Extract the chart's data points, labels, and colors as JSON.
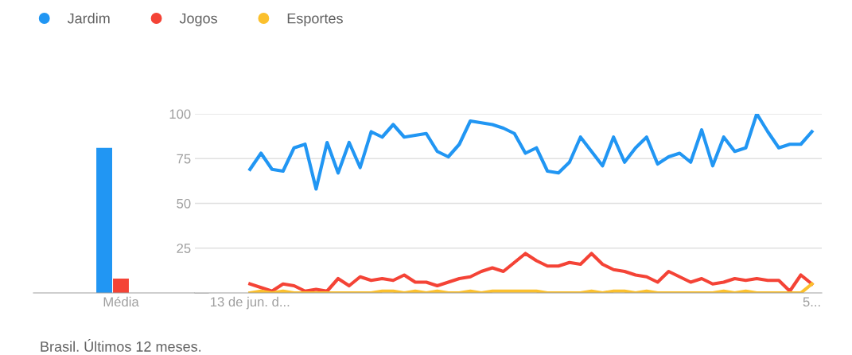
{
  "chart_data": [
    {
      "type": "bar",
      "categories": [
        "Média"
      ],
      "ylim": [
        0,
        100
      ],
      "tick_labels": "x",
      "grid": false,
      "legend": false,
      "series": [
        {
          "color": "#2196f3",
          "values": [
            81
          ]
        },
        {
          "color": "#f44336",
          "values": [
            8
          ]
        },
        {
          "color": "#fbc02d",
          "values": [
            0
          ]
        }
      ]
    },
    {
      "type": "line",
      "categories": [
        "13 de jun. d...",
        null,
        null,
        null,
        null,
        null,
        null,
        null,
        null,
        null,
        null,
        null,
        null,
        null,
        null,
        null,
        null,
        null,
        null,
        null,
        null,
        null,
        null,
        null,
        null,
        null,
        null,
        null,
        null,
        null,
        null,
        null,
        null,
        null,
        null,
        null,
        null,
        null,
        null,
        null,
        null,
        null,
        null,
        null,
        null,
        null,
        null,
        null,
        null,
        null,
        null,
        "5..."
      ],
      "ylim": [
        0,
        100
      ],
      "yticks": [
        25,
        50,
        75,
        100
      ],
      "grid": "y",
      "legend": "top left",
      "marker": "none",
      "line_style": "solid",
      "annotations": [
        "Brasil. Últimos 12 meses."
      ],
      "series": [
        {
          "name": "Jardim",
          "color": "#2196f3",
          "values": [
            69,
            78,
            69,
            68,
            81,
            83,
            58,
            84,
            67,
            84,
            70,
            90,
            87,
            94,
            87,
            88,
            89,
            79,
            76,
            83,
            96,
            95,
            94,
            92,
            89,
            78,
            81,
            68,
            67,
            73,
            87,
            79,
            71,
            87,
            73,
            81,
            87,
            72,
            76,
            78,
            73,
            91,
            71,
            87,
            79,
            81,
            100,
            90,
            81,
            83,
            83,
            90
          ]
        },
        {
          "name": "Jogos",
          "color": "#f44336",
          "values": [
            5,
            3,
            1,
            5,
            4,
            1,
            2,
            1,
            8,
            4,
            9,
            7,
            8,
            7,
            10,
            6,
            6,
            4,
            6,
            8,
            9,
            12,
            14,
            12,
            17,
            22,
            18,
            15,
            15,
            17,
            16,
            22,
            16,
            13,
            12,
            10,
            9,
            6,
            12,
            9,
            6,
            8,
            5,
            6,
            8,
            7,
            8,
            7,
            7,
            1,
            10,
            5
          ]
        },
        {
          "name": "Esportes",
          "color": "#fbc02d",
          "values": [
            0,
            1,
            0,
            1,
            0,
            0,
            0,
            0,
            0,
            0,
            0,
            0,
            1,
            1,
            0,
            1,
            0,
            1,
            0,
            0,
            1,
            0,
            1,
            1,
            1,
            1,
            1,
            0,
            0,
            0,
            0,
            1,
            0,
            1,
            1,
            0,
            1,
            0,
            0,
            0,
            0,
            0,
            0,
            1,
            0,
            1,
            0,
            0,
            0,
            0,
            0,
            5
          ]
        }
      ]
    }
  ]
}
